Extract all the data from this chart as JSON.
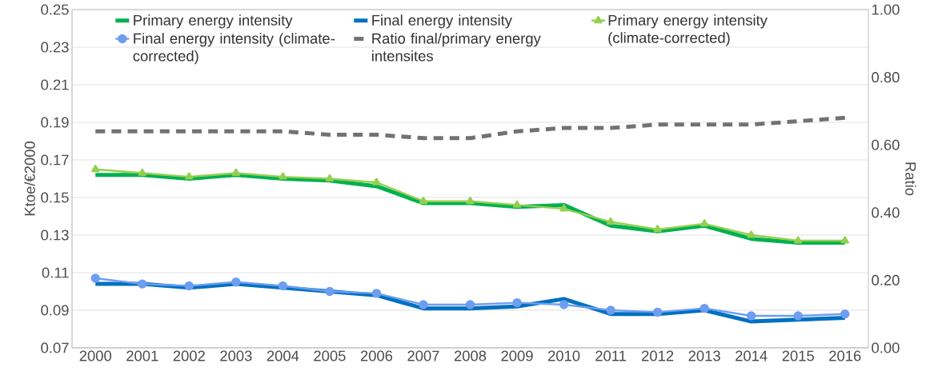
{
  "chart_data": {
    "type": "line",
    "categories": [
      "2000",
      "2001",
      "2002",
      "2003",
      "2004",
      "2005",
      "2006",
      "2007",
      "2008",
      "2009",
      "2010",
      "2011",
      "2012",
      "2013",
      "2014",
      "2015",
      "2016"
    ],
    "series": [
      {
        "name": "Primary energy intensity",
        "color": "#00b050",
        "marker": "none",
        "line_style": "solid",
        "values": [
          0.162,
          0.162,
          0.16,
          0.162,
          0.16,
          0.159,
          0.156,
          0.147,
          0.147,
          0.145,
          0.146,
          0.135,
          0.132,
          0.135,
          0.128,
          0.126,
          0.126
        ]
      },
      {
        "name": "Final energy intensity",
        "color": "#0070c0",
        "marker": "none",
        "line_style": "solid",
        "values": [
          0.104,
          0.104,
          0.102,
          0.104,
          0.102,
          0.1,
          0.098,
          0.091,
          0.091,
          0.092,
          0.096,
          0.088,
          0.088,
          0.09,
          0.084,
          0.085,
          0.086
        ]
      },
      {
        "name": "Primary energy intensity (climate-corrected)",
        "color": "#92d050",
        "marker": "triangle",
        "line_style": "solid",
        "values": [
          0.165,
          0.163,
          0.161,
          0.163,
          0.161,
          0.16,
          0.158,
          0.148,
          0.148,
          0.146,
          0.144,
          0.137,
          0.133,
          0.136,
          0.13,
          0.127,
          0.127
        ]
      },
      {
        "name": "Final energy intensity (climate-corrected)",
        "color": "#6d9ef0",
        "marker": "circle",
        "line_style": "solid",
        "values": [
          0.107,
          0.104,
          0.103,
          0.105,
          0.103,
          0.1,
          0.099,
          0.093,
          0.093,
          0.094,
          0.093,
          0.09,
          0.089,
          0.091,
          0.087,
          0.087,
          0.088
        ]
      },
      {
        "name": "Ratio final/primary energy intensites",
        "color": "#767171",
        "marker": "none",
        "line_style": "dashed",
        "axis": "y2",
        "values": [
          0.64,
          0.64,
          0.64,
          0.64,
          0.64,
          0.63,
          0.63,
          0.62,
          0.62,
          0.64,
          0.65,
          0.65,
          0.66,
          0.66,
          0.66,
          0.67,
          0.68
        ]
      }
    ],
    "ylabel": "Ktoe/€2000",
    "y2label": "Ratio",
    "ylim": [
      0.07,
      0.25
    ],
    "yticks": [
      0.07,
      0.09,
      0.11,
      0.13,
      0.15,
      0.17,
      0.19,
      0.21,
      0.23,
      0.25
    ],
    "y2lim": [
      0,
      1
    ],
    "y2ticks": [
      {
        "value": 0,
        "label": "0.00"
      },
      {
        "value": 0.2,
        "label": "0.20"
      },
      {
        "value": 0.4,
        "label": "0.40"
      },
      {
        "value": 0.6,
        "label": "0.60"
      },
      {
        "value": 0.8,
        "label": "0.80"
      },
      {
        "value": 1,
        "label": "1.00"
      }
    ],
    "grid": "y",
    "legend": "top"
  }
}
